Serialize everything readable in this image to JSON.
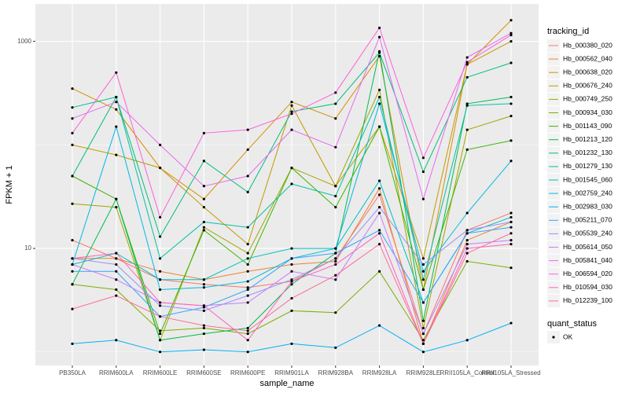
{
  "chart_data": {
    "type": "line",
    "x_label": "sample_name",
    "y_label": "FPKM + 1",
    "categories": [
      "PB350LA",
      "RRIM600LA",
      "RRIM600LE",
      "RRIM600SE",
      "RRIM600PE",
      "RRIM901LA",
      "RRIM928BA",
      "RRIM928LA",
      "RRIM928LE",
      "RRII105LA_Control",
      "RRII105LA_Stressed"
    ],
    "log_y": true,
    "ylim": [
      0.74,
      2300
    ],
    "yticks": [
      10,
      1000
    ],
    "grid": true,
    "legend_title": "tracking_id",
    "legend_position": "right",
    "point_legend_title": "quant_status",
    "point_legend_label": "OK",
    "point_color": "#000000",
    "series": [
      {
        "name": "Hb_000380_020",
        "color": "#F8766D",
        "values": [
          12,
          8,
          5,
          4.5,
          4.2,
          4.8,
          8,
          33,
          1.5,
          15,
          22
        ]
      },
      {
        "name": "Hb_000562_040",
        "color": "#EA8331",
        "values": [
          8,
          8,
          6,
          5,
          6,
          7,
          7.5,
          38,
          1.2,
          12,
          18
        ]
      },
      {
        "name": "Hb_000638_020",
        "color": "#D89000",
        "values": [
          350,
          220,
          60,
          30,
          90,
          260,
          180,
          720,
          4,
          600,
          1600
        ]
      },
      {
        "name": "Hb_000676_240",
        "color": "#C09B00",
        "values": [
          100,
          80,
          60,
          25,
          11,
          240,
          40,
          150,
          8,
          600,
          1000
        ]
      },
      {
        "name": "Hb_000749_250",
        "color": "#A3A500",
        "values": [
          27,
          25,
          1.3,
          16,
          9,
          60,
          40,
          340,
          1.7,
          140,
          190
        ]
      },
      {
        "name": "Hb_000934_030",
        "color": "#7CAE00",
        "values": [
          4.5,
          4,
          1.6,
          1.7,
          1.5,
          2.5,
          2.4,
          6,
          1.3,
          7.5,
          6.5
        ]
      },
      {
        "name": "Hb_001143_090",
        "color": "#39B600",
        "values": [
          50,
          30,
          1.5,
          15,
          7,
          60,
          25,
          150,
          4,
          90,
          110
        ]
      },
      {
        "name": "Hb_001213_120",
        "color": "#00BB4E",
        "values": [
          4.5,
          30,
          1.3,
          1.5,
          1.7,
          4.5,
          9,
          800,
          2,
          250,
          290
        ]
      },
      {
        "name": "Hb_001232_130",
        "color": "#00BF7D",
        "values": [
          50,
          290,
          13,
          70,
          35,
          210,
          250,
          780,
          55,
          450,
          620
        ]
      },
      {
        "name": "Hb_001279_130",
        "color": "#00C1A3",
        "values": [
          230,
          290,
          8,
          18,
          16,
          42,
          32,
          290,
          5,
          240,
          250
        ]
      },
      {
        "name": "Hb_001545_060",
        "color": "#00BFC4",
        "values": [
          7,
          9,
          5,
          5,
          8,
          10,
          10,
          45,
          3,
          14,
          20
        ]
      },
      {
        "name": "Hb_002759_240",
        "color": "#00BAE0",
        "values": [
          7,
          150,
          4,
          4.2,
          4.8,
          8,
          10,
          250,
          6,
          22,
          70
        ]
      },
      {
        "name": "Hb_002983_030",
        "color": "#00B0F6",
        "values": [
          1.2,
          1.3,
          1,
          1.05,
          1,
          1.2,
          1.1,
          1.8,
          1,
          1.3,
          1.9
        ]
      },
      {
        "name": "Hb_005211_070",
        "color": "#35A2FF",
        "values": [
          6,
          6,
          2.2,
          2.7,
          4,
          8,
          9,
          15,
          3,
          14,
          16
        ]
      },
      {
        "name": "Hb_005539_240",
        "color": "#9590FF",
        "values": [
          8,
          7,
          2.8,
          2.5,
          3.5,
          5,
          8,
          25,
          7,
          15,
          18
        ]
      },
      {
        "name": "Hb_005614_050",
        "color": "#C77CFF",
        "values": [
          7,
          5,
          3,
          2.8,
          3,
          6,
          5,
          22,
          1.5,
          11,
          12
        ]
      },
      {
        "name": "Hb_005841_040",
        "color": "#E76BF3",
        "values": [
          180,
          260,
          100,
          40,
          50,
          140,
          95,
          1100,
          30,
          700,
          1200
        ]
      },
      {
        "name": "Hb_006594_020",
        "color": "#FA62DB",
        "values": [
          130,
          500,
          20,
          130,
          140,
          200,
          320,
          1350,
          75,
          630,
          1150
        ]
      },
      {
        "name": "Hb_010594_030",
        "color": "#FF62BC",
        "values": [
          8,
          9,
          3,
          2.8,
          1.3,
          4.8,
          7,
          14,
          1.2,
          10,
          11
        ]
      },
      {
        "name": "Hb_012239_100",
        "color": "#FF6A98",
        "values": [
          2.6,
          3.5,
          2.2,
          1.8,
          1.6,
          3.3,
          5.5,
          11,
          1.2,
          9,
          14
        ]
      }
    ]
  }
}
